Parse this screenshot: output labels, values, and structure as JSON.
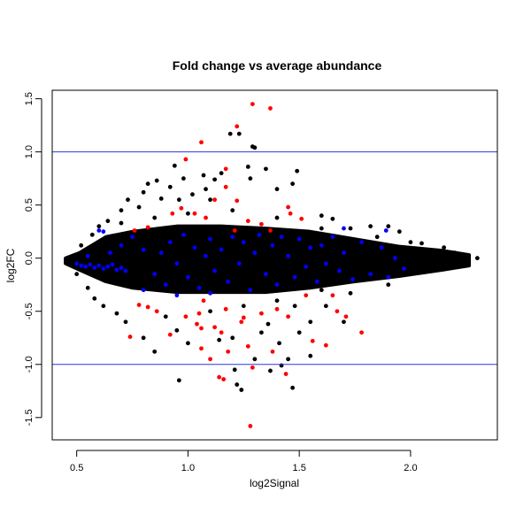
{
  "chart_data": {
    "type": "scatter",
    "title": "Fold change vs average abundance",
    "xlabel": "log2Signal",
    "ylabel": "log2FC",
    "xlim": [
      0.39,
      2.39
    ],
    "ylim": [
      -1.71,
      1.58
    ],
    "x_ticks": [
      "0.5",
      "1.0",
      "1.5",
      "2.0"
    ],
    "y_ticks": [
      "-1.5",
      "-1.0",
      "-0.5",
      "0.0",
      "0.5",
      "1.0",
      "1.5"
    ],
    "grid": false,
    "legend": "none",
    "reference_lines": [
      1.0,
      -1.0
    ],
    "colors": {
      "default": "#000000",
      "highlight_blue": "#0000ff",
      "highlight_red": "#ff0000",
      "reference_line": "#3333dd"
    },
    "dense_core_outline": [
      [
        0.45,
        0.0
      ],
      [
        0.513,
        0.05
      ],
      [
        0.632,
        0.2
      ],
      [
        0.752,
        0.25
      ],
      [
        0.95,
        0.3
      ],
      [
        1.149,
        0.3
      ],
      [
        1.348,
        0.28
      ],
      [
        1.547,
        0.25
      ],
      [
        1.746,
        0.18
      ],
      [
        1.945,
        0.11
      ],
      [
        2.144,
        0.07
      ],
      [
        2.263,
        0.03
      ],
      [
        2.263,
        -0.07
      ],
      [
        2.144,
        -0.11
      ],
      [
        1.945,
        -0.17
      ],
      [
        1.746,
        -0.22
      ],
      [
        1.547,
        -0.28
      ],
      [
        1.348,
        -0.32
      ],
      [
        1.149,
        -0.32
      ],
      [
        0.95,
        -0.32
      ],
      [
        0.752,
        -0.28
      ],
      [
        0.632,
        -0.22
      ],
      [
        0.513,
        -0.11
      ],
      [
        0.45,
        -0.05
      ]
    ],
    "series": [
      {
        "color": "#000000",
        "points": [
          [
            0.94,
            0.87
          ],
          [
            0.98,
            0.75
          ],
          [
            1.07,
            0.78
          ],
          [
            1.12,
            0.74
          ],
          [
            1.19,
            1.17
          ],
          [
            1.23,
            1.17
          ],
          [
            1.29,
            1.05
          ],
          [
            1.3,
            1.04
          ],
          [
            1.27,
            0.86
          ],
          [
            1.35,
            0.84
          ],
          [
            1.4,
            0.65
          ],
          [
            1.47,
            0.7
          ],
          [
            1.49,
            0.82
          ],
          [
            1.28,
            0.75
          ],
          [
            1.15,
            0.8
          ],
          [
            1.08,
            0.65
          ],
          [
            0.92,
            0.67
          ],
          [
            0.88,
            0.56
          ],
          [
            0.8,
            0.62
          ],
          [
            0.82,
            0.7
          ],
          [
            0.86,
            0.73
          ],
          [
            0.73,
            0.55
          ],
          [
            0.7,
            0.45
          ],
          [
            0.78,
            0.48
          ],
          [
            0.96,
            0.55
          ],
          [
            1.02,
            0.6
          ],
          [
            1.1,
            0.55
          ],
          [
            1.6,
            0.4
          ],
          [
            1.65,
            0.37
          ],
          [
            1.73,
            0.28
          ],
          [
            1.82,
            0.3
          ],
          [
            1.9,
            0.3
          ],
          [
            1.95,
            0.25
          ],
          [
            2.05,
            0.14
          ],
          [
            2.15,
            0.1
          ],
          [
            2.3,
            0.0
          ],
          [
            2.25,
            -0.02
          ],
          [
            2.2,
            0.05
          ],
          [
            1.85,
            -0.15
          ],
          [
            1.9,
            -0.25
          ],
          [
            1.73,
            -0.33
          ],
          [
            1.62,
            -0.45
          ],
          [
            1.7,
            -0.6
          ],
          [
            1.55,
            -0.6
          ],
          [
            1.5,
            -0.7
          ],
          [
            1.48,
            -0.45
          ],
          [
            1.33,
            -0.7
          ],
          [
            1.36,
            -0.62
          ],
          [
            1.41,
            -0.8
          ],
          [
            1.2,
            -0.75
          ],
          [
            1.14,
            -0.77
          ],
          [
            1.0,
            -0.8
          ],
          [
            0.95,
            -0.68
          ],
          [
            0.85,
            -0.88
          ],
          [
            0.8,
            -0.75
          ],
          [
            0.72,
            -0.6
          ],
          [
            0.68,
            -0.52
          ],
          [
            0.62,
            -0.45
          ],
          [
            0.58,
            -0.38
          ],
          [
            0.55,
            -0.28
          ],
          [
            0.96,
            -1.15
          ],
          [
            1.21,
            -1.05
          ],
          [
            1.22,
            -1.19
          ],
          [
            1.24,
            -1.24
          ],
          [
            1.37,
            -1.06
          ],
          [
            1.42,
            -1.01
          ],
          [
            1.47,
            -1.22
          ],
          [
            1.45,
            -0.95
          ],
          [
            1.55,
            -0.92
          ],
          [
            1.3,
            -0.95
          ],
          [
            0.64,
            0.35
          ],
          [
            0.6,
            0.3
          ],
          [
            0.57,
            0.22
          ],
          [
            0.52,
            0.12
          ],
          [
            0.5,
            -0.15
          ],
          [
            0.9,
            -0.55
          ],
          [
            1.1,
            -0.5
          ],
          [
            1.25,
            -0.45
          ],
          [
            1.4,
            -0.4
          ],
          [
            1.6,
            -0.3
          ],
          [
            1.8,
            -0.2
          ],
          [
            2.0,
            -0.1
          ],
          [
            2.1,
            -0.05
          ],
          [
            2.0,
            0.15
          ],
          [
            1.85,
            0.2
          ],
          [
            1.6,
            0.28
          ],
          [
            1.4,
            0.38
          ],
          [
            1.2,
            0.45
          ],
          [
            1.0,
            0.42
          ],
          [
            0.85,
            0.38
          ],
          [
            0.7,
            0.33
          ]
        ]
      },
      {
        "color": "#0000ff",
        "points": [
          [
            0.5,
            -0.05
          ],
          [
            0.52,
            -0.07
          ],
          [
            0.54,
            -0.08
          ],
          [
            0.56,
            -0.06
          ],
          [
            0.58,
            -0.09
          ],
          [
            0.6,
            -0.07
          ],
          [
            0.62,
            -0.1
          ],
          [
            0.64,
            -0.08
          ],
          [
            0.66,
            -0.06
          ],
          [
            0.68,
            -0.11
          ],
          [
            0.7,
            -0.09
          ],
          [
            0.72,
            -0.12
          ],
          [
            0.55,
            0.02
          ],
          [
            0.6,
            0.26
          ],
          [
            0.62,
            0.25
          ],
          [
            0.75,
            0.2
          ],
          [
            0.8,
            0.08
          ],
          [
            0.85,
            -0.15
          ],
          [
            0.88,
            0.05
          ],
          [
            0.9,
            -0.25
          ],
          [
            0.92,
            0.15
          ],
          [
            0.95,
            -0.05
          ],
          [
            0.98,
            0.22
          ],
          [
            1.0,
            -0.18
          ],
          [
            1.03,
            0.1
          ],
          [
            1.05,
            -0.28
          ],
          [
            1.08,
            0.02
          ],
          [
            1.1,
            0.18
          ],
          [
            1.12,
            -0.12
          ],
          [
            1.15,
            0.08
          ],
          [
            1.18,
            -0.22
          ],
          [
            1.2,
            0.2
          ],
          [
            1.23,
            -0.05
          ],
          [
            1.25,
            0.15
          ],
          [
            1.28,
            -0.3
          ],
          [
            1.3,
            0.05
          ],
          [
            1.32,
            0.22
          ],
          [
            1.35,
            -0.15
          ],
          [
            1.38,
            0.12
          ],
          [
            1.4,
            -0.25
          ],
          [
            1.42,
            0.2
          ],
          [
            1.45,
            0.02
          ],
          [
            1.48,
            -0.18
          ],
          [
            1.5,
            0.18
          ],
          [
            1.53,
            -0.08
          ],
          [
            1.55,
            0.1
          ],
          [
            1.58,
            -0.22
          ],
          [
            1.6,
            0.12
          ],
          [
            1.62,
            -0.05
          ],
          [
            1.65,
            0.2
          ],
          [
            1.68,
            -0.12
          ],
          [
            1.7,
            0.05
          ],
          [
            1.74,
            -0.2
          ],
          [
            1.78,
            0.15
          ],
          [
            1.82,
            -0.15
          ],
          [
            1.87,
            0.1
          ],
          [
            1.9,
            -0.18
          ],
          [
            1.93,
            0.0
          ],
          [
            1.97,
            -0.1
          ],
          [
            1.89,
            0.26
          ],
          [
            0.8,
            -0.3
          ],
          [
            0.95,
            -0.35
          ],
          [
            1.1,
            -0.33
          ],
          [
            0.7,
            0.12
          ],
          [
            0.65,
            0.05
          ],
          [
            1.7,
            0.28
          ]
        ]
      },
      {
        "color": "#ff0000",
        "points": [
          [
            1.29,
            1.45
          ],
          [
            1.37,
            1.41
          ],
          [
            1.22,
            1.24
          ],
          [
            1.06,
            1.09
          ],
          [
            0.99,
            0.93
          ],
          [
            1.17,
            0.84
          ],
          [
            1.17,
            0.67
          ],
          [
            1.12,
            0.55
          ],
          [
            1.22,
            0.54
          ],
          [
            1.45,
            0.48
          ],
          [
            1.46,
            0.42
          ],
          [
            1.51,
            0.37
          ],
          [
            0.93,
            0.42
          ],
          [
            0.76,
            0.26
          ],
          [
            0.82,
            0.29
          ],
          [
            0.97,
            0.47
          ],
          [
            1.03,
            0.42
          ],
          [
            1.08,
            0.38
          ],
          [
            1.27,
            0.35
          ],
          [
            1.33,
            0.32
          ],
          [
            1.07,
            -0.4
          ],
          [
            0.82,
            -0.46
          ],
          [
            0.78,
            -0.44
          ],
          [
            0.86,
            -0.5
          ],
          [
            0.99,
            -0.55
          ],
          [
            1.05,
            -0.52
          ],
          [
            1.17,
            -0.48
          ],
          [
            1.25,
            -0.56
          ],
          [
            0.74,
            -0.74
          ],
          [
            0.92,
            -0.72
          ],
          [
            1.04,
            -0.62
          ],
          [
            1.06,
            -0.66
          ],
          [
            1.15,
            -0.7
          ],
          [
            1.24,
            -0.6
          ],
          [
            1.33,
            -0.52
          ],
          [
            1.27,
            -0.83
          ],
          [
            1.38,
            -0.88
          ],
          [
            1.06,
            -0.85
          ],
          [
            1.12,
            -0.65
          ],
          [
            1.4,
            -0.48
          ],
          [
            1.45,
            -0.55
          ],
          [
            1.56,
            -0.78
          ],
          [
            1.62,
            -0.82
          ],
          [
            1.71,
            -0.55
          ],
          [
            1.67,
            -0.5
          ],
          [
            1.78,
            -0.7
          ],
          [
            1.1,
            -0.95
          ],
          [
            1.18,
            -0.88
          ],
          [
            1.14,
            -1.12
          ],
          [
            1.16,
            -1.14
          ],
          [
            1.29,
            -1.03
          ],
          [
            1.44,
            -1.09
          ],
          [
            1.28,
            -1.58
          ],
          [
            1.53,
            -0.35
          ],
          [
            1.65,
            -0.35
          ],
          [
            1.21,
            0.26
          ],
          [
            1.37,
            0.26
          ]
        ]
      }
    ]
  }
}
